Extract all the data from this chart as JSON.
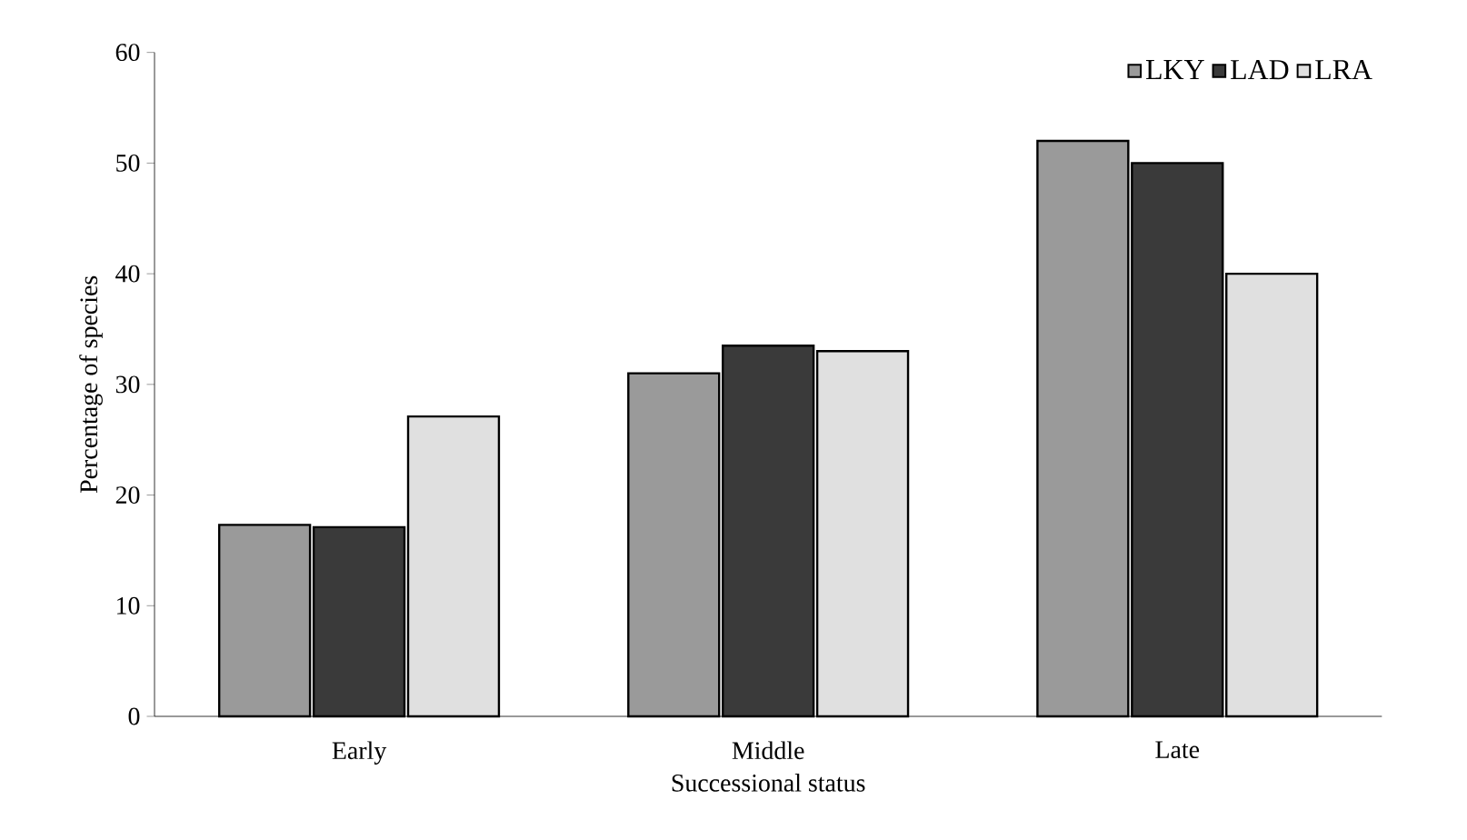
{
  "chart_data": {
    "type": "bar",
    "xlabel": "Successional status",
    "ylabel": "Percentage of species",
    "categories": [
      "Early",
      "Middle",
      "Late"
    ],
    "series": [
      {
        "name": "LKY",
        "color": "#9a9a9a",
        "values": [
          17.3,
          31.0,
          52.0
        ]
      },
      {
        "name": "LAD",
        "color": "#3a3a3a",
        "values": [
          17.1,
          33.5,
          50.0
        ]
      },
      {
        "name": "LRA",
        "color": "#e0e0e0",
        "values": [
          27.1,
          33.0,
          40.0
        ]
      }
    ],
    "ylim": [
      0,
      60
    ],
    "yticks": [
      0,
      10,
      20,
      30,
      40,
      50,
      60
    ],
    "grid": false,
    "legend": "top right"
  }
}
